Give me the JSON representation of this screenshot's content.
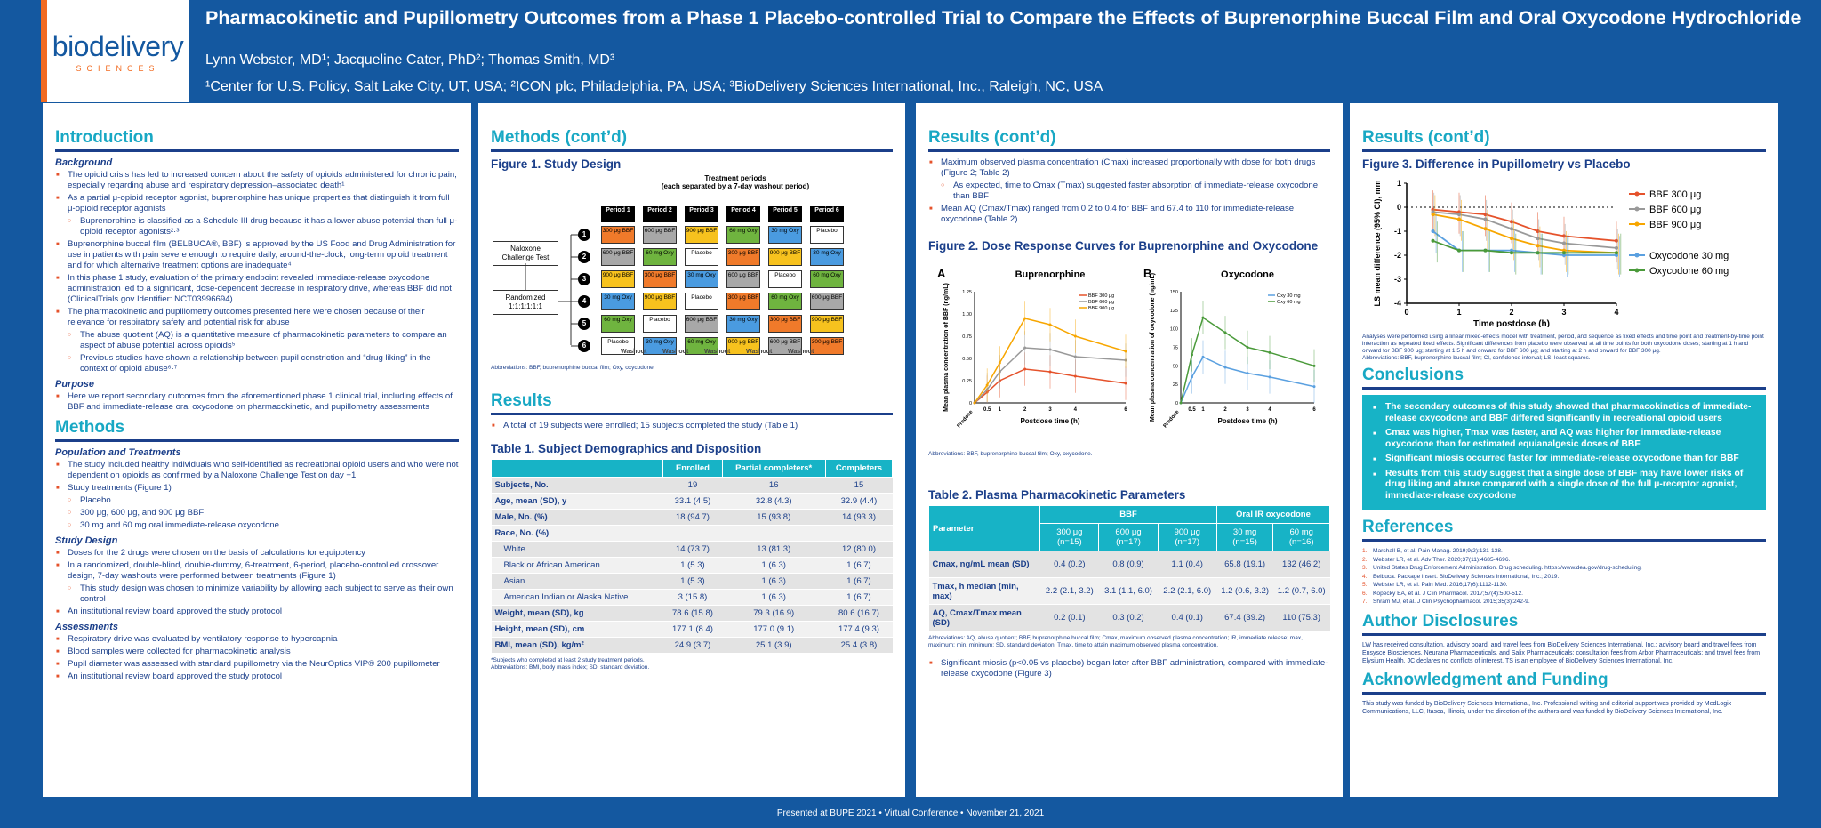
{
  "header": {
    "logo_word": "biodelivery",
    "logo_sub": "SCIENCES",
    "title": "Pharmacokinetic and Pupillometry Outcomes from a Phase 1 Placebo-controlled Trial to Compare the Effects of Buprenorphine Buccal Film and Oral Oxycodone Hydrochloride",
    "authors": "Lynn Webster, MD¹; Jacqueline Cater, PhD²; Thomas Smith, MD³",
    "affiliations": "¹Center for U.S. Policy, Salt Lake City, UT, USA; ²ICON plc, Philadelphia, PA, USA; ³BioDelivery Sciences International, Inc., Raleigh, NC, USA"
  },
  "footer": "Presented at BUPE 2021 • Virtual Conference • November 21, 2021",
  "intro": {
    "title": "Introduction",
    "background_heading": "Background",
    "bullets": [
      "The opioid crisis has led to increased concern about the safety of opioids administered for chronic pain, especially regarding abuse and respiratory depression–associated death¹",
      "As a partial μ-opioid receptor agonist, buprenorphine has unique properties that distinguish it from full μ-opioid receptor agonists",
      "Buprenorphine is classified as a Schedule III drug because it has a lower abuse potential than full μ-opioid receptor agonists²·³",
      "Buprenorphine buccal film (BELBUCA®, BBF) is approved by the US Food and Drug Administration for use in patients with pain severe enough to require daily, around-the-clock, long-term opioid treatment and for which alternative treatment options are inadequate⁴",
      "In this phase 1 study, evaluation of the primary endpoint revealed immediate-release oxycodone administration led to a significant, dose-dependent decrease in respiratory drive, whereas BBF did not (ClinicalTrials.gov Identifier: NCT03996694)",
      "The pharmacokinetic and pupillometry outcomes presented here were chosen because of their relevance for respiratory safety and potential risk for abuse",
      "The abuse quotient (AQ) is a quantitative measure of pharmacokinetic parameters to compare an aspect of abuse potential across opioids⁵",
      "Previous studies have shown a relationship between pupil constriction and “drug liking” in the context of opioid abuse⁶·⁷"
    ],
    "purpose_heading": "Purpose",
    "purpose": "Here we report secondary outcomes from the aforementioned phase 1 clinical trial, including effects of BBF and immediate-release oral oxycodone on pharmacokinetic, and pupillometry assessments"
  },
  "methods": {
    "title": "Methods",
    "pop_heading": "Population and Treatments",
    "pop_bullets": [
      "The study included healthy individuals who self-identified as recreational opioid users and who were not dependent on opioids as confirmed by a Naloxone Challenge Test on day −1",
      "Study treatments (Figure 1)",
      "Placebo",
      "300 μg, 600 μg, and 900 μg BBF",
      "30 mg and 60 mg oral immediate-release oxycodone"
    ],
    "design_heading": "Study Design",
    "design_bullets": [
      "Doses for the 2 drugs were chosen on the basis of calculations for equipotency",
      "In a randomized, double-blind, double-dummy, 6-treatment, 6-period, placebo-controlled crossover design, 7-day washouts were performed between treatments (Figure 1)",
      "This study design was chosen to minimize variability by allowing each subject to serve as their own control",
      "An institutional review board approved the study protocol"
    ],
    "assess_heading": "Assessments",
    "assess_bullets": [
      "Respiratory drive was evaluated by ventilatory response to hypercapnia",
      "Blood samples were collected for pharmacokinetic analysis",
      "Pupil diameter was assessed with standard pupillometry via the NeurOptics VIP® 200 pupillometer",
      "An institutional review board approved the study protocol"
    ]
  },
  "methods2": {
    "title": "Methods (cont’d)",
    "fig_title": "Figure 1. Study Design",
    "periods_header": "Treatment periods",
    "periods_sub": "(each separated by a 7-day washout period)",
    "periods": [
      "Period 1",
      "Period 2",
      "Period 3",
      "Period 4",
      "Period 5",
      "Period 6"
    ],
    "naloxone": "Naloxone Challenge Test",
    "randomized": "Randomized 1:1:1:1:1:1",
    "seqs": [
      "1",
      "2",
      "3",
      "4",
      "5",
      "6"
    ],
    "cells": [
      [
        "300 μg BBF",
        "600 μg BBF",
        "900 μg BBF",
        "60 mg Oxy",
        "30 mg Oxy",
        "Placebo"
      ],
      [
        "600 μg BBF",
        "60 mg Oxy",
        "Placebo",
        "300 μg BBF",
        "900 μg BBF",
        "30 mg Oxy"
      ],
      [
        "900 μg BBF",
        "300 μg BBF",
        "30 mg Oxy",
        "600 μg BBF",
        "Placebo",
        "60 mg Oxy"
      ],
      [
        "30 mg Oxy",
        "900 μg BBF",
        "Placebo",
        "300 μg BBF",
        "60 mg Oxy",
        "600 μg BBF"
      ],
      [
        "60 mg Oxy",
        "Placebo",
        "600 μg BBF",
        "30 mg Oxy",
        "300 μg BBF",
        "900 μg BBF"
      ],
      [
        "Placebo",
        "30 mg Oxy",
        "60 mg Oxy",
        "900 μg BBF",
        "600 μg BBF",
        "300 μg BBF"
      ]
    ],
    "washout": "Washout",
    "fig_abbrev": "Abbreviations: BBF, buprenorphine buccal film; Oxy, oxycodone.",
    "results_title": "Results",
    "results_bullet": "A total of 19 subjects were enrolled; 15 subjects completed the study (Table 1)",
    "table1_title": "Table 1. Subject Demographics and Disposition",
    "table1_headers": [
      "",
      "Enrolled",
      "Partial completers*",
      "Completers"
    ],
    "table1_rows": [
      [
        "Subjects, No.",
        "19",
        "16",
        "15"
      ],
      [
        "Age, mean (SD), y",
        "33.1 (4.5)",
        "32.8 (4.3)",
        "32.9 (4.4)"
      ],
      [
        "Male, No. (%)",
        "18 (94.7)",
        "15 (93.8)",
        "14 (93.3)"
      ],
      [
        "Race, No. (%)",
        "",
        "",
        ""
      ],
      [
        "White",
        "14 (73.7)",
        "13 (81.3)",
        "12 (80.0)"
      ],
      [
        "Black or African American",
        "1 (5.3)",
        "1 (6.3)",
        "1 (6.7)"
      ],
      [
        "Asian",
        "1 (5.3)",
        "1 (6.3)",
        "1 (6.7)"
      ],
      [
        "American Indian or Alaska Native",
        "3 (15.8)",
        "1 (6.3)",
        "1 (6.7)"
      ],
      [
        "Weight, mean (SD), kg",
        "78.6 (15.8)",
        "79.3 (16.9)",
        "80.6 (16.7)"
      ],
      [
        "Height, mean (SD), cm",
        "177.1 (8.4)",
        "177.0 (9.1)",
        "177.4 (9.3)"
      ],
      [
        "BMI, mean (SD), kg/m²",
        "24.9 (3.7)",
        "25.1 (3.9)",
        "25.4 (3.8)"
      ]
    ],
    "table1_fn1": "*Subjects who completed at least 2 study treatment periods.",
    "table1_fn2": "Abbreviations: BMI, body mass index; SD, standard deviation."
  },
  "results2": {
    "title": "Results (cont’d)",
    "bullets": [
      "Maximum observed plasma concentration (Cmax) increased proportionally with dose for both drugs (Figure 2; Table 2)",
      "As expected, time to Cmax (Tmax) suggested faster absorption of immediate-release oxycodone than BBF",
      "Mean AQ (Cmax/Tmax) ranged from 0.2 to 0.4 for BBF and 67.4 to 110 for immediate-release oxycodone (Table 2)"
    ],
    "fig2_title": "Figure 2. Dose Response Curves for Buprenorphine and Oxycodone",
    "fig2_abbrev": "Abbreviations: BBF, buprenorphine buccal film; Oxy, oxycodone.",
    "table2_title": "Table 2. Plasma Pharmacokinetic Parameters",
    "table2_group_bbf": "BBF",
    "table2_group_oxy": "Oral IR oxycodone",
    "table2_param": "Parameter",
    "table2_cols": [
      "300 μg (n=15)",
      "600 μg (n=17)",
      "900 μg (n=17)",
      "30 mg (n=15)",
      "60 mg (n=16)"
    ],
    "table2_rows": [
      {
        "label": "Cmax, ng/mL mean (SD)",
        "vals": [
          "0.4 (0.2)",
          "0.8 (0.9)",
          "1.1 (0.4)",
          "65.8 (19.1)",
          "132 (46.2)"
        ]
      },
      {
        "label": "Tmax, h median (min, max)",
        "vals": [
          "2.2 (2.1, 3.2)",
          "3.1 (1.1, 6.0)",
          "2.2 (2.1, 6.0)",
          "1.2 (0.6, 3.2)",
          "1.2 (0.7, 6.0)"
        ]
      },
      {
        "label": "AQ, Cmax/Tmax mean (SD)",
        "vals": [
          "0.2 (0.1)",
          "0.3 (0.2)",
          "0.4 (0.1)",
          "67.4 (39.2)",
          "110 (75.3)"
        ]
      }
    ],
    "table2_fn": "Abbreviations: AQ, abuse quotient; BBF, buprenorphine buccal film; Cmax, maximum observed plasma concentration; IR, immediate release; max, maximum; min, minimum; SD, standard deviation; Tmax, time to attain maximum observed plasma concentration.",
    "miosis_bullet": "Significant miosis (p<0.05 vs placebo) began later after BBF administration, compared with immediate-release oxycodone (Figure 3)"
  },
  "results3": {
    "title": "Results (cont’d)",
    "fig3_title": "Figure 3. Difference in Pupillometry vs Placebo",
    "fig3_note": "Analyses were performed using a linear mixed-effects model with treatment, period, and sequence as fixed effects and time point and treatment-by-time point interaction as repeated fixed effects. Significant differences from placebo were observed at all time points for both oxycodone doses; starting at 1 h and onward for BBF 900 μg; starting at 1.5 h and onward for BBF 600 μg; and starting at 2 h and onward for BBF 300 μg.",
    "fig3_abbrev": "Abbreviations: BBF, buprenorphine buccal film; CI, confidence interval; LS, least squares.",
    "concl_title": "Conclusions",
    "concl": [
      "The secondary outcomes of this study showed that pharmacokinetics of immediate-release oxycodone and BBF differed significantly in recreational opioid users",
      "Cmax was higher, Tmax was faster, and AQ was higher for immediate-release oxycodone than for estimated equianalgesic doses of BBF",
      "Significant miosis occurred faster for immediate-release oxycodone than for BBF",
      "Results from this study suggest that a single dose of BBF may have lower risks of drug liking and abuse compared with a single dose of the full μ-receptor agonist, immediate-release oxycodone"
    ],
    "ref_title": "References",
    "refs": [
      {
        "n": "1.",
        "t": "Marshall B, et al. Pain Manag. 2019;9(2):131-138."
      },
      {
        "n": "2.",
        "t": "Webster LR, et al. Adv Ther. 2020;37(11):4685-4696."
      },
      {
        "n": "3.",
        "t": "United States Drug Enforcement Administration. Drug scheduling. https://www.dea.gov/drug-scheduling."
      },
      {
        "n": "4.",
        "t": "Belbuca. Package insert. BioDelivery Sciences International, Inc.; 2019."
      },
      {
        "n": "5.",
        "t": "Webster LR, et al. Pain Med. 2016;17(6):1112-1130."
      },
      {
        "n": "6.",
        "t": "Kopecky EA, et al. J Clin Pharmacol. 2017;57(4):500-512."
      },
      {
        "n": "7.",
        "t": "Shram MJ, et al. J Clin Psychopharmacol. 2015;35(3):242-9."
      }
    ],
    "disc_title": "Author Disclosures",
    "disc": "LW has received consultation, advisory board, and travel fees from BioDelivery Sciences International, Inc.; advisory board and travel fees from Ensysce Biosciences, Neurana Pharmaceuticals, and Salix Pharmaceuticals; consultation fees from Arbor Pharmaceuticals; and travel fees from Elysium Health. JC declares no conflicts of interest. TS is an employee of BioDelivery Sciences International, Inc.",
    "ack_title": "Acknowledgment and Funding",
    "ack": "This study was funded by BioDelivery Sciences International, Inc. Professional writing and editorial support was provided by MedLogix Communications, LLC, Itasca, Illinois, under the direction of the authors and was funded by BioDelivery Sciences International, Inc."
  },
  "chart_data": [
    {
      "id": "fig2a",
      "type": "line",
      "panel": "A",
      "title": "Buprenorphine",
      "xlabel": "Postdose time (h)",
      "ylabel": "Mean plasma concentration of BBF (ng/mL)",
      "x": [
        0,
        0.5,
        1,
        2,
        3,
        4,
        6
      ],
      "x_ticks": [
        "Predose",
        "0.5",
        "1",
        "2",
        "3",
        "4",
        "6"
      ],
      "y_ticks": [
        "0",
        "0.25",
        "0.50",
        "0.75",
        "1.00",
        "1.25"
      ],
      "ylim": [
        0,
        1.25
      ],
      "series": [
        {
          "name": "BBF 300 μg",
          "color": "#e5522b",
          "values": [
            0,
            0.12,
            0.25,
            0.38,
            0.35,
            0.3,
            0.22
          ]
        },
        {
          "name": "BBF 600 μg",
          "color": "#999999",
          "values": [
            0,
            0.15,
            0.35,
            0.62,
            0.6,
            0.52,
            0.48
          ]
        },
        {
          "name": "BBF 900 μg",
          "color": "#f7a600",
          "values": [
            0,
            0.2,
            0.45,
            0.95,
            0.88,
            0.75,
            0.58
          ]
        }
      ]
    },
    {
      "id": "fig2b",
      "type": "line",
      "panel": "B",
      "title": "Oxycodone",
      "xlabel": "Postdose time (h)",
      "ylabel": "Mean plasma concentration of oxycodone (ng/mL)",
      "x": [
        0,
        0.5,
        1,
        2,
        3,
        4,
        6
      ],
      "x_ticks": [
        "Predose",
        "0.5",
        "1",
        "2",
        "3",
        "4",
        "6"
      ],
      "y_ticks": [
        "0",
        "25",
        "50",
        "75",
        "100",
        "125",
        "150"
      ],
      "ylim": [
        0,
        150
      ],
      "series": [
        {
          "name": "Oxy 30 mg",
          "color": "#5aa0e0",
          "values": [
            0,
            35,
            62,
            48,
            40,
            35,
            22
          ]
        },
        {
          "name": "Oxy 60 mg",
          "color": "#4a9a3a",
          "values": [
            0,
            65,
            115,
            95,
            75,
            68,
            50
          ]
        }
      ]
    },
    {
      "id": "fig3",
      "type": "line",
      "title": "Difference in Pupillometry vs Placebo",
      "xlabel": "Time postdose (h)",
      "ylabel": "LS mean difference (95% CI), mm",
      "x": [
        0.5,
        1,
        1.5,
        2,
        2.5,
        3,
        4
      ],
      "x_ticks": [
        "0",
        "1",
        "2",
        "3",
        "4"
      ],
      "y_ticks": [
        "1",
        "0",
        "-1",
        "-2",
        "-3",
        "-4"
      ],
      "ylim": [
        -4,
        1
      ],
      "xlim": [
        0,
        4
      ],
      "series": [
        {
          "name": "BBF 300 μg",
          "color": "#e5522b",
          "values": [
            -0.1,
            -0.2,
            -0.3,
            -0.6,
            -1.0,
            -1.2,
            -1.4
          ]
        },
        {
          "name": "BBF 600 μg",
          "color": "#999999",
          "values": [
            -0.2,
            -0.3,
            -0.5,
            -0.9,
            -1.3,
            -1.5,
            -1.7
          ]
        },
        {
          "name": "BBF 900 μg",
          "color": "#f7a600",
          "values": [
            -0.3,
            -0.5,
            -0.9,
            -1.3,
            -1.6,
            -1.8,
            -1.9
          ]
        },
        {
          "name": "Oxycodone 30 mg",
          "color": "#5aa0e0",
          "values": [
            -1.0,
            -1.8,
            -1.8,
            -1.8,
            -1.9,
            -2.0,
            -2.0
          ]
        },
        {
          "name": "Oxycodone 60 mg",
          "color": "#4a9a3a",
          "values": [
            -1.4,
            -1.8,
            -1.8,
            -1.9,
            -1.9,
            -1.9,
            -1.9
          ]
        }
      ]
    }
  ],
  "colors": {
    "header_bg": "#1458a0",
    "accent": "#18a8c4",
    "bullet": "#e5522b",
    "text": "#1b3f8a"
  }
}
